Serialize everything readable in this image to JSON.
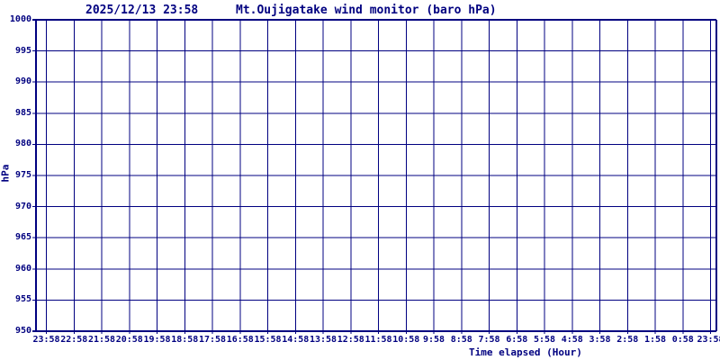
{
  "header": {
    "datetime": "2025/12/13 23:58",
    "title": "Mt.Oujigatake wind monitor (baro hPa)"
  },
  "chart_data": {
    "type": "line",
    "title": "Mt.Oujigatake wind monitor (baro hPa)",
    "timestamp": "2025/12/13 23:58",
    "xlabel": "Time elapsed (Hour)",
    "ylabel": "hPa",
    "ylim": [
      950,
      1000
    ],
    "y_ticks": [
      1000,
      995,
      990,
      985,
      980,
      975,
      970,
      965,
      960,
      955,
      950
    ],
    "x_ticks": [
      "23:58",
      "22:58",
      "21:58",
      "20:58",
      "19:58",
      "18:58",
      "17:58",
      "16:58",
      "15:58",
      "14:58",
      "13:58",
      "12:58",
      "11:58",
      "10:58",
      "9:58",
      "8:58",
      "7:58",
      "6:58",
      "5:58",
      "4:58",
      "3:58",
      "2:58",
      "1:58",
      "0:58",
      "23:58"
    ],
    "grid": true,
    "legend": "none",
    "series": [],
    "note": "empty plot - no data points drawn",
    "colors": {
      "grid": "#000080",
      "border": "#000080",
      "text": "#000080",
      "background": "#ffffff"
    }
  }
}
